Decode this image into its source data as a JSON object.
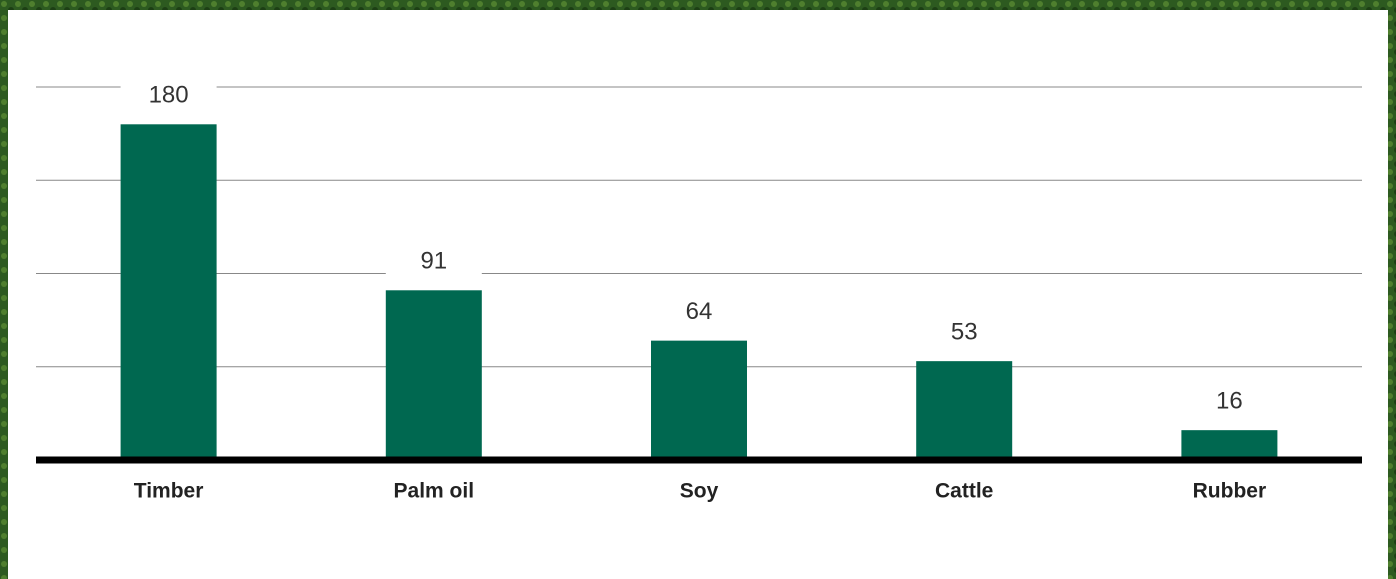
{
  "chart_data": {
    "type": "bar",
    "categories": [
      "Timber",
      "Palm oil",
      "Soy",
      "Cattle",
      "Rubber"
    ],
    "values": [
      180,
      91,
      64,
      53,
      16
    ],
    "color": "#006850",
    "ylim": [
      0,
      200
    ],
    "yticks": [
      50,
      100,
      150,
      200
    ],
    "grid": true
  }
}
